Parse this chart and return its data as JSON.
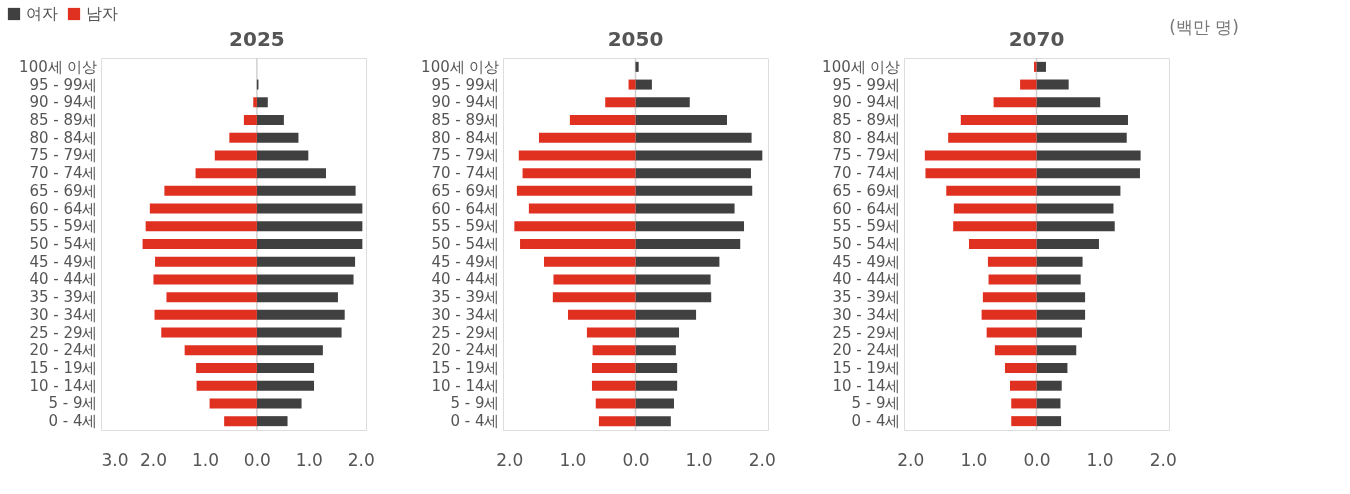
{
  "chart_data": [
    {
      "type": "bar",
      "orientation": "horizontal",
      "stacked": true,
      "title": "2025",
      "legend": "top left",
      "grid": false,
      "categories": [
        "100세 이상",
        "95 - 99세",
        "90 - 94세",
        "85 - 89세",
        "80 - 84세",
        "75 - 79세",
        "70 - 74세",
        "65 - 69세",
        "60 - 64세",
        "55 - 59세",
        "50 - 54세",
        "45 - 49세",
        "40 - 44세",
        "35 - 39세",
        "30 - 34세",
        "25 - 29세",
        "20 - 24세",
        "15 - 19세",
        "10 - 14세",
        "5 - 9세",
        "0 - 4세"
      ],
      "series": [
        {
          "name": "여자",
          "color": "#404040",
          "values": [
            0,
            0.03,
            0.21,
            0.52,
            0.8,
            0.99,
            1.33,
            1.9,
            2.03,
            2.03,
            2.03,
            1.89,
            1.86,
            1.56,
            1.69,
            1.63,
            1.27,
            1.1,
            1.1,
            0.86,
            0.59
          ]
        },
        {
          "name": "남자",
          "color": "#e03020",
          "values": [
            0,
            0,
            -0.07,
            -0.25,
            -0.53,
            -0.81,
            -1.18,
            -1.78,
            -2.06,
            -2.14,
            -2.2,
            -1.96,
            -1.99,
            -1.74,
            -1.97,
            -1.84,
            -1.39,
            -1.17,
            -1.16,
            -0.91,
            -0.63
          ]
        }
      ],
      "xlim": [
        -3.0,
        2.1
      ],
      "xticks": [
        {
          "value": -3,
          "label": "3.0"
        },
        {
          "value": -2,
          "label": "2.0"
        },
        {
          "value": -1,
          "label": "1.0"
        },
        {
          "value": 0,
          "label": "0.0"
        },
        {
          "value": 1,
          "label": "1.0"
        },
        {
          "value": 2,
          "label": "2.0"
        }
      ],
      "ref_lines": [
        {
          "axis": "x",
          "value": 0,
          "color": "#d0d0d0"
        }
      ]
    },
    {
      "type": "bar",
      "orientation": "horizontal",
      "stacked": true,
      "title": "2050",
      "legend": false,
      "grid": false,
      "categories": [
        "100세 이상",
        "95 - 99세",
        "90 - 94세",
        "85 - 89세",
        "80 - 84세",
        "75 - 79세",
        "70 - 74세",
        "65 - 69세",
        "60 - 64세",
        "55 - 59세",
        "50 - 54세",
        "45 - 49세",
        "40 - 44세",
        "35 - 39세",
        "30 - 34세",
        "25 - 29세",
        "20 - 24세",
        "15 - 19세",
        "10 - 14세",
        "5 - 9세",
        "0 - 4세"
      ],
      "series": [
        {
          "color": "#404040",
          "values": [
            0.05,
            0.26,
            0.86,
            1.45,
            1.84,
            2.01,
            1.83,
            1.85,
            1.57,
            1.72,
            1.66,
            1.33,
            1.19,
            1.2,
            0.96,
            0.69,
            0.64,
            0.66,
            0.66,
            0.61,
            0.56
          ]
        },
        {
          "color": "#e03020",
          "values": [
            0,
            -0.11,
            -0.48,
            -1.04,
            -1.53,
            -1.85,
            -1.79,
            -1.88,
            -1.69,
            -1.92,
            -1.83,
            -1.45,
            -1.3,
            -1.31,
            -1.07,
            -0.77,
            -0.68,
            -0.69,
            -0.69,
            -0.63,
            -0.58
          ]
        }
      ],
      "xlim": [
        -2.1,
        2.1
      ],
      "xticks": [
        {
          "value": -2,
          "label": "2.0"
        },
        {
          "value": -1,
          "label": "1.0"
        },
        {
          "value": 0,
          "label": "0.0"
        },
        {
          "value": 1,
          "label": "1.0"
        },
        {
          "value": 2,
          "label": "2.0"
        }
      ],
      "ref_lines": [
        {
          "axis": "x",
          "value": 0,
          "color": "#d0d0d0"
        }
      ]
    },
    {
      "type": "bar",
      "orientation": "horizontal",
      "stacked": true,
      "title": "2070",
      "legend": false,
      "grid": false,
      "categories": [
        "100세 이상",
        "95 - 99세",
        "90 - 94세",
        "85 - 89세",
        "80 - 84세",
        "75 - 79세",
        "70 - 74세",
        "65 - 69세",
        "60 - 64세",
        "55 - 59세",
        "50 - 54세",
        "45 - 49세",
        "40 - 44세",
        "35 - 39세",
        "30 - 34세",
        "25 - 29세",
        "20 - 24세",
        "15 - 19세",
        "10 - 14세",
        "5 - 9세",
        "0 - 4세"
      ],
      "series": [
        {
          "color": "#404040",
          "values": [
            0.15,
            0.51,
            1.01,
            1.45,
            1.43,
            1.65,
            1.64,
            1.33,
            1.22,
            1.24,
            0.99,
            0.73,
            0.7,
            0.77,
            0.77,
            0.72,
            0.63,
            0.49,
            0.4,
            0.38,
            0.39
          ]
        },
        {
          "color": "#e03020",
          "values": [
            -0.04,
            -0.26,
            -0.68,
            -1.2,
            -1.4,
            -1.77,
            -1.76,
            -1.43,
            -1.31,
            -1.32,
            -1.07,
            -0.77,
            -0.76,
            -0.85,
            -0.87,
            -0.79,
            -0.66,
            -0.5,
            -0.42,
            -0.4,
            -0.4
          ]
        }
      ],
      "xlim": [
        -2.1,
        2.1
      ],
      "xticks": [
        {
          "value": -2,
          "label": "2.0"
        },
        {
          "value": -1,
          "label": "1.0"
        },
        {
          "value": 0,
          "label": "0.0"
        },
        {
          "value": 1,
          "label": "1.0"
        },
        {
          "value": 2,
          "label": "2.0"
        }
      ],
      "ref_lines": [
        {
          "axis": "x",
          "value": 0,
          "color": "#d0d0d0"
        }
      ],
      "annotations": [
        "(백만 명)"
      ]
    }
  ]
}
